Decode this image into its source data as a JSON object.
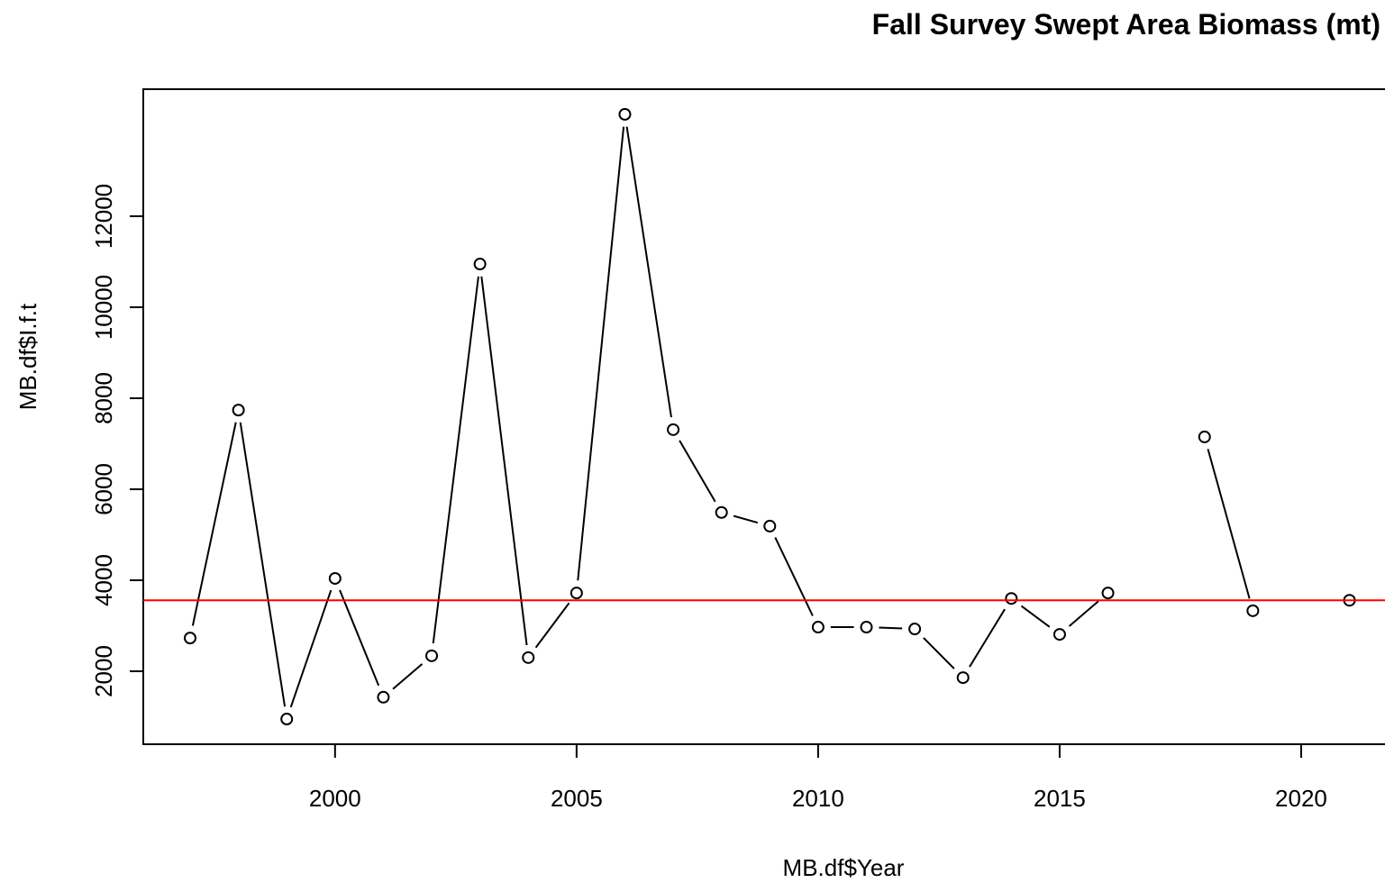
{
  "chart_data": {
    "type": "line",
    "title": "Fall Survey Swept Area Biomass (mt)",
    "x_label": "MB.df$Year",
    "y_label": "MB.df$I.f.t",
    "x": [
      1997,
      1998,
      1999,
      2000,
      2001,
      2002,
      2003,
      2004,
      2005,
      2006,
      2007,
      2008,
      2009,
      2010,
      2011,
      2012,
      2013,
      2014,
      2015,
      2016,
      2017,
      2018,
      2019,
      2020,
      2021
    ],
    "series": [
      {
        "name": "MB.df$I.f.t",
        "color": "#000000",
        "values": [
          2730,
          7740,
          950,
          4040,
          1430,
          2340,
          10950,
          2300,
          3720,
          14240,
          7310,
          5490,
          5190,
          2970,
          2970,
          2930,
          1860,
          3600,
          2810,
          3720,
          null,
          7150,
          3330,
          null,
          3560
        ]
      }
    ],
    "hline": {
      "value": 3560,
      "color": "#ff0000"
    },
    "xlim": [
      1996.03,
      2022.5
    ],
    "ylim": [
      396,
      14792
    ],
    "xticks": [
      2000,
      2005,
      2010,
      2015,
      2020
    ],
    "yticks": [
      2000,
      4000,
      6000,
      8000,
      10000,
      12000
    ]
  }
}
